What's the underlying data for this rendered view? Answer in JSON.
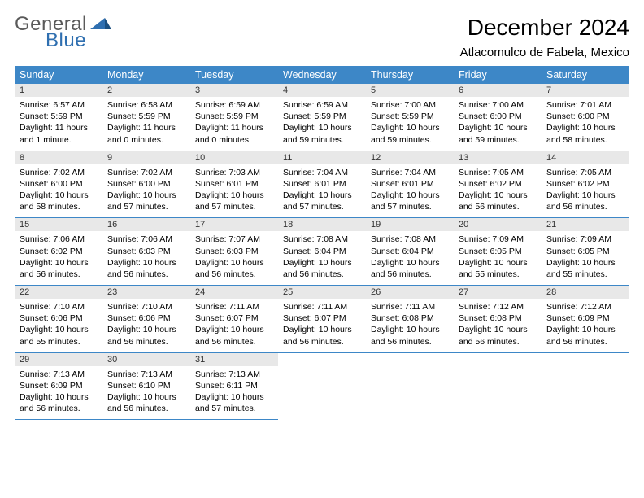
{
  "logo": {
    "text1": "General",
    "text2": "Blue"
  },
  "title": "December 2024",
  "location": "Atlacomulco de Fabela, Mexico",
  "colors": {
    "header_bg": "#3d87c7",
    "header_text": "#ffffff",
    "daynum_bg": "#e8e8e8",
    "row_border": "#3d87c7",
    "logo_gray": "#5a5a5a",
    "logo_blue": "#2f6fb0"
  },
  "dayNames": [
    "Sunday",
    "Monday",
    "Tuesday",
    "Wednesday",
    "Thursday",
    "Friday",
    "Saturday"
  ],
  "weeks": [
    [
      {
        "n": "1",
        "sr": "6:57 AM",
        "ss": "5:59 PM",
        "dl": "11 hours and 1 minute."
      },
      {
        "n": "2",
        "sr": "6:58 AM",
        "ss": "5:59 PM",
        "dl": "11 hours and 0 minutes."
      },
      {
        "n": "3",
        "sr": "6:59 AM",
        "ss": "5:59 PM",
        "dl": "11 hours and 0 minutes."
      },
      {
        "n": "4",
        "sr": "6:59 AM",
        "ss": "5:59 PM",
        "dl": "10 hours and 59 minutes."
      },
      {
        "n": "5",
        "sr": "7:00 AM",
        "ss": "5:59 PM",
        "dl": "10 hours and 59 minutes."
      },
      {
        "n": "6",
        "sr": "7:00 AM",
        "ss": "6:00 PM",
        "dl": "10 hours and 59 minutes."
      },
      {
        "n": "7",
        "sr": "7:01 AM",
        "ss": "6:00 PM",
        "dl": "10 hours and 58 minutes."
      }
    ],
    [
      {
        "n": "8",
        "sr": "7:02 AM",
        "ss": "6:00 PM",
        "dl": "10 hours and 58 minutes."
      },
      {
        "n": "9",
        "sr": "7:02 AM",
        "ss": "6:00 PM",
        "dl": "10 hours and 57 minutes."
      },
      {
        "n": "10",
        "sr": "7:03 AM",
        "ss": "6:01 PM",
        "dl": "10 hours and 57 minutes."
      },
      {
        "n": "11",
        "sr": "7:04 AM",
        "ss": "6:01 PM",
        "dl": "10 hours and 57 minutes."
      },
      {
        "n": "12",
        "sr": "7:04 AM",
        "ss": "6:01 PM",
        "dl": "10 hours and 57 minutes."
      },
      {
        "n": "13",
        "sr": "7:05 AM",
        "ss": "6:02 PM",
        "dl": "10 hours and 56 minutes."
      },
      {
        "n": "14",
        "sr": "7:05 AM",
        "ss": "6:02 PM",
        "dl": "10 hours and 56 minutes."
      }
    ],
    [
      {
        "n": "15",
        "sr": "7:06 AM",
        "ss": "6:02 PM",
        "dl": "10 hours and 56 minutes."
      },
      {
        "n": "16",
        "sr": "7:06 AM",
        "ss": "6:03 PM",
        "dl": "10 hours and 56 minutes."
      },
      {
        "n": "17",
        "sr": "7:07 AM",
        "ss": "6:03 PM",
        "dl": "10 hours and 56 minutes."
      },
      {
        "n": "18",
        "sr": "7:08 AM",
        "ss": "6:04 PM",
        "dl": "10 hours and 56 minutes."
      },
      {
        "n": "19",
        "sr": "7:08 AM",
        "ss": "6:04 PM",
        "dl": "10 hours and 56 minutes."
      },
      {
        "n": "20",
        "sr": "7:09 AM",
        "ss": "6:05 PM",
        "dl": "10 hours and 55 minutes."
      },
      {
        "n": "21",
        "sr": "7:09 AM",
        "ss": "6:05 PM",
        "dl": "10 hours and 55 minutes."
      }
    ],
    [
      {
        "n": "22",
        "sr": "7:10 AM",
        "ss": "6:06 PM",
        "dl": "10 hours and 55 minutes."
      },
      {
        "n": "23",
        "sr": "7:10 AM",
        "ss": "6:06 PM",
        "dl": "10 hours and 56 minutes."
      },
      {
        "n": "24",
        "sr": "7:11 AM",
        "ss": "6:07 PM",
        "dl": "10 hours and 56 minutes."
      },
      {
        "n": "25",
        "sr": "7:11 AM",
        "ss": "6:07 PM",
        "dl": "10 hours and 56 minutes."
      },
      {
        "n": "26",
        "sr": "7:11 AM",
        "ss": "6:08 PM",
        "dl": "10 hours and 56 minutes."
      },
      {
        "n": "27",
        "sr": "7:12 AM",
        "ss": "6:08 PM",
        "dl": "10 hours and 56 minutes."
      },
      {
        "n": "28",
        "sr": "7:12 AM",
        "ss": "6:09 PM",
        "dl": "10 hours and 56 minutes."
      }
    ],
    [
      {
        "n": "29",
        "sr": "7:13 AM",
        "ss": "6:09 PM",
        "dl": "10 hours and 56 minutes."
      },
      {
        "n": "30",
        "sr": "7:13 AM",
        "ss": "6:10 PM",
        "dl": "10 hours and 56 minutes."
      },
      {
        "n": "31",
        "sr": "7:13 AM",
        "ss": "6:11 PM",
        "dl": "10 hours and 57 minutes."
      },
      null,
      null,
      null,
      null
    ]
  ],
  "labels": {
    "sunrise": "Sunrise:",
    "sunset": "Sunset:",
    "daylight": "Daylight:"
  }
}
